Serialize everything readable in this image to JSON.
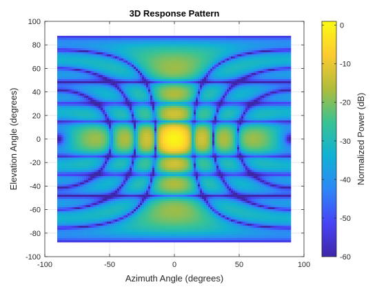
{
  "chart_data": {
    "type": "heatmap",
    "title": "3D Response Pattern",
    "xlabel": "Azimuth Angle (degrees)",
    "ylabel": "Elevation Angle (degrees)",
    "xlim": [
      -100,
      100
    ],
    "ylim": [
      -100,
      100
    ],
    "x_ticks": [
      -100,
      -50,
      0,
      50,
      100
    ],
    "y_ticks": [
      -100,
      -80,
      -60,
      -40,
      -20,
      0,
      20,
      40,
      60,
      80,
      100
    ],
    "data_extent": {
      "azimuth": [
        -90,
        90
      ],
      "elevation": [
        -87,
        87
      ]
    },
    "peak": {
      "azimuth": 0,
      "elevation": 0,
      "value_db": 0
    },
    "grid": true,
    "colorbar": {
      "label": "Normalized Power (dB)",
      "range": [
        -60,
        1
      ],
      "ticks": [
        0,
        -10,
        -20,
        -30,
        -40,
        -50,
        -60
      ],
      "tick_labels": [
        "0",
        "-10",
        "-20",
        "-30",
        "-40",
        "-50",
        "-60"
      ],
      "colormap": [
        "#3E26A8",
        "#4743F5",
        "#2E87F7",
        "#10B1D5",
        "#39C393",
        "#B0BC3A",
        "#FDCB30",
        "#FAFA14"
      ]
    }
  }
}
